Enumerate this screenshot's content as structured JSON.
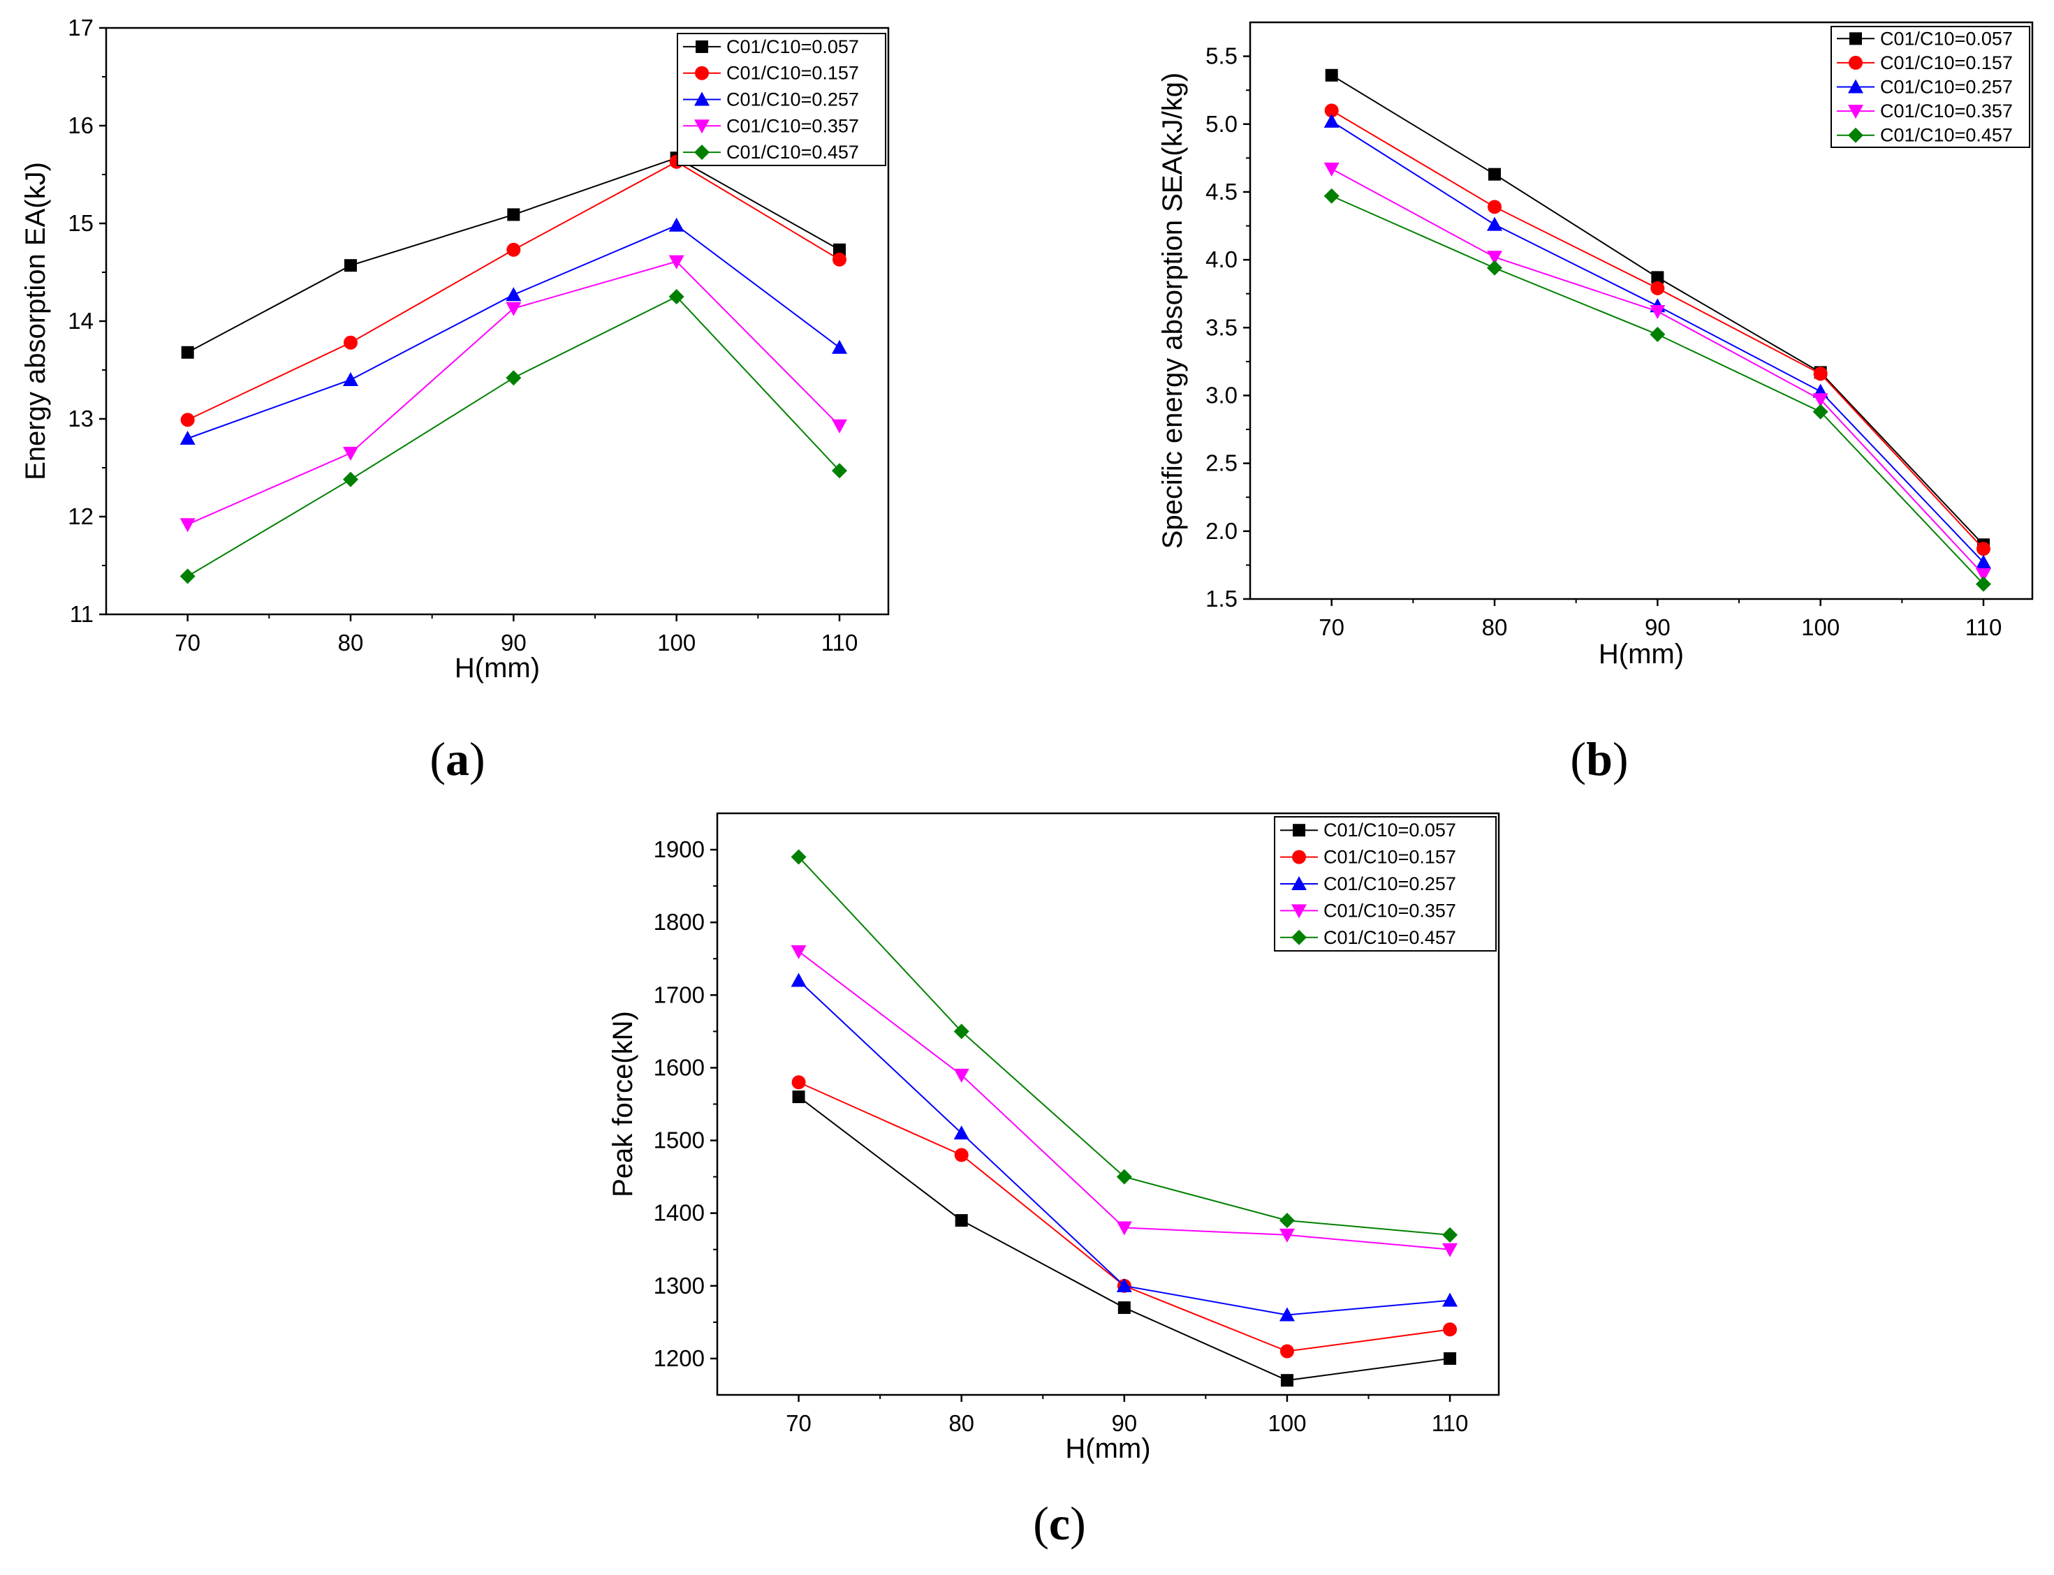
{
  "chart_data": [
    {
      "type": "line",
      "panel": "a",
      "panel_label": "(a)",
      "xlabel": "H(mm)",
      "ylabel": "Energy absorption EA(kJ)",
      "x": [
        70,
        80,
        90,
        100,
        110
      ],
      "xlim": [
        65,
        113
      ],
      "ylim": [
        11,
        17
      ],
      "yticks": [
        11,
        12,
        13,
        14,
        15,
        16,
        17
      ],
      "ytick_labels": [
        "11",
        "12",
        "13",
        "14",
        "15",
        "16",
        "17"
      ],
      "legend_position": "top-right",
      "series": [
        {
          "name": "C01/C10=0.057",
          "color": "#000000",
          "marker": "square",
          "values": [
            13.68,
            14.57,
            15.09,
            15.67,
            14.73
          ]
        },
        {
          "name": "C01/C10=0.157",
          "color": "#ff0000",
          "marker": "circle",
          "values": [
            12.99,
            13.78,
            14.73,
            15.63,
            14.63
          ]
        },
        {
          "name": "C01/C10=0.257",
          "color": "#0000ff",
          "marker": "triangle-up",
          "values": [
            12.8,
            13.4,
            14.27,
            14.98,
            13.73
          ]
        },
        {
          "name": "C01/C10=0.357",
          "color": "#ff00ff",
          "marker": "triangle-down",
          "values": [
            11.92,
            12.65,
            14.13,
            14.61,
            12.93
          ]
        },
        {
          "name": "C01/C10=0.457",
          "color": "#008000",
          "marker": "diamond",
          "values": [
            11.39,
            12.38,
            13.42,
            14.25,
            12.47
          ]
        }
      ]
    },
    {
      "type": "line",
      "panel": "b",
      "panel_label": "(b)",
      "xlabel": "H(mm)",
      "ylabel": "Specific energy absorption SEA(kJ/kg)",
      "x": [
        70,
        80,
        90,
        100,
        110
      ],
      "xlim": [
        65,
        113
      ],
      "ylim": [
        1.5,
        5.75
      ],
      "yticks": [
        1.5,
        2.0,
        2.5,
        3.0,
        3.5,
        4.0,
        4.5,
        5.0,
        5.5
      ],
      "ytick_labels": [
        "1.5",
        "2.0",
        "2.5",
        "3.0",
        "3.5",
        "4.0",
        "4.5",
        "5.0",
        "5.5"
      ],
      "legend_position": "top-right",
      "series": [
        {
          "name": "C01/C10=0.057",
          "color": "#000000",
          "marker": "square",
          "values": [
            5.36,
            4.63,
            3.87,
            3.17,
            1.9
          ]
        },
        {
          "name": "C01/C10=0.157",
          "color": "#ff0000",
          "marker": "circle",
          "values": [
            5.1,
            4.39,
            3.79,
            3.16,
            1.87
          ]
        },
        {
          "name": "C01/C10=0.257",
          "color": "#0000ff",
          "marker": "triangle-up",
          "values": [
            5.02,
            4.26,
            3.66,
            3.03,
            1.77
          ]
        },
        {
          "name": "C01/C10=0.357",
          "color": "#ff00ff",
          "marker": "triangle-down",
          "values": [
            4.67,
            4.02,
            3.62,
            2.97,
            1.68
          ]
        },
        {
          "name": "C01/C10=0.457",
          "color": "#008000",
          "marker": "diamond",
          "values": [
            4.47,
            3.94,
            3.45,
            2.88,
            1.61
          ]
        }
      ]
    },
    {
      "type": "line",
      "panel": "c",
      "panel_label": "(c)",
      "xlabel": "H(mm)",
      "ylabel": "Peak force(kN)",
      "x": [
        70,
        80,
        90,
        100,
        110
      ],
      "xlim": [
        65,
        113
      ],
      "ylim": [
        1150,
        1950
      ],
      "yticks": [
        1200,
        1300,
        1400,
        1500,
        1600,
        1700,
        1800,
        1900
      ],
      "ytick_labels": [
        "1200",
        "1300",
        "1400",
        "1500",
        "1600",
        "1700",
        "1800",
        "1900"
      ],
      "legend_position": "top-right",
      "series": [
        {
          "name": "C01/C10=0.057",
          "color": "#000000",
          "marker": "square",
          "values": [
            1560,
            1390,
            1270,
            1170,
            1200
          ]
        },
        {
          "name": "C01/C10=0.157",
          "color": "#ff0000",
          "marker": "circle",
          "values": [
            1580,
            1480,
            1300,
            1210,
            1240
          ]
        },
        {
          "name": "C01/C10=0.257",
          "color": "#0000ff",
          "marker": "triangle-up",
          "values": [
            1720,
            1510,
            1300,
            1260,
            1280
          ]
        },
        {
          "name": "C01/C10=0.357",
          "color": "#ff00ff",
          "marker": "triangle-down",
          "values": [
            1760,
            1590,
            1380,
            1370,
            1350
          ]
        },
        {
          "name": "C01/C10=0.457",
          "color": "#008000",
          "marker": "diamond",
          "values": [
            1890,
            1650,
            1450,
            1390,
            1370
          ]
        }
      ]
    }
  ]
}
